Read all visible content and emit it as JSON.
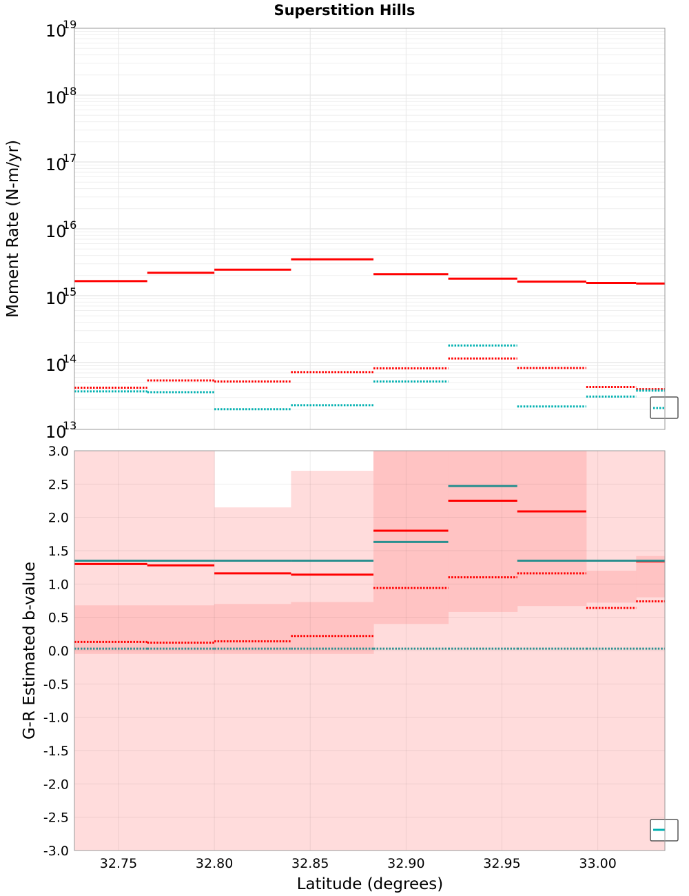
{
  "figure": {
    "title": "Superstition Hills",
    "xlabel": "Latitude (degrees)"
  },
  "chart_data": [
    {
      "type": "line",
      "title": "Superstition Hills",
      "ylabel": "Moment Rate (N-m/yr)",
      "xlabel": "Latitude (degrees)",
      "yscale": "log",
      "ylim": [
        10000000000000.0,
        1e+19
      ],
      "xlim": [
        32.727,
        33.035
      ],
      "grid": true,
      "x_ticks": [
        "32.75",
        "32.80",
        "32.85",
        "32.90",
        "32.95",
        "33.00"
      ],
      "y_ticks": [
        {
          "base": "10",
          "exp": "13",
          "value": 10000000000000.0
        },
        {
          "base": "10",
          "exp": "14",
          "value": 100000000000000.0
        },
        {
          "base": "10",
          "exp": "15",
          "value": 1000000000000000.0
        },
        {
          "base": "10",
          "exp": "16",
          "value": 1e+16
        },
        {
          "base": "10",
          "exp": "17",
          "value": 1e+17
        },
        {
          "base": "10",
          "exp": "18",
          "value": 1e+18
        },
        {
          "base": "10",
          "exp": "19",
          "value": 1e+19
        }
      ],
      "bins": [
        [
          32.727,
          32.765
        ],
        [
          32.765,
          32.8
        ],
        [
          32.8,
          32.84
        ],
        [
          32.84,
          32.883
        ],
        [
          32.883,
          32.922
        ],
        [
          32.922,
          32.958
        ],
        [
          32.958,
          32.994
        ],
        [
          32.994,
          33.02
        ],
        [
          33.02,
          33.035
        ]
      ],
      "series": [
        {
          "color": "#ff0000",
          "style": "solid",
          "values": [
            1650000000000000.0,
            2200000000000000.0,
            2450000000000000.0,
            3500000000000000.0,
            2100000000000000.0,
            1800000000000000.0,
            1620000000000000.0,
            1550000000000000.0,
            1520000000000000.0
          ]
        },
        {
          "color": "#ff0000",
          "style": "dotted",
          "values": [
            42000000000000.0,
            54000000000000.0,
            52000000000000.0,
            72000000000000.0,
            82000000000000.0,
            115000000000000.0,
            83000000000000.0,
            43000000000000.0,
            40000000000000.0
          ]
        },
        {
          "color": "#00b0b0",
          "style": "dotted",
          "values": [
            37000000000000.0,
            36000000000000.0,
            20000000000000.0,
            23000000000000.0,
            52000000000000.0,
            180000000000000.0,
            22000000000000.0,
            31000000000000.0,
            38000000000000.0
          ]
        }
      ]
    },
    {
      "type": "line",
      "ylabel": "G-R Estimated b-value",
      "xlabel": "Latitude (degrees)",
      "ylim": [
        -3.0,
        3.0
      ],
      "xlim": [
        32.727,
        33.035
      ],
      "grid": true,
      "x_ticks": [
        "32.75",
        "32.80",
        "32.85",
        "32.90",
        "32.95",
        "33.00"
      ],
      "y_ticks": [
        "3.0",
        "2.5",
        "2.0",
        "1.5",
        "1.0",
        "0.5",
        "0.0",
        "-0.5",
        "-1.0",
        "-1.5",
        "-2.0",
        "-2.5",
        "-3.0"
      ],
      "bins": [
        [
          32.727,
          32.765
        ],
        [
          32.765,
          32.8
        ],
        [
          32.8,
          32.84
        ],
        [
          32.84,
          32.883
        ],
        [
          32.883,
          32.922
        ],
        [
          32.922,
          32.958
        ],
        [
          32.958,
          32.994
        ],
        [
          32.994,
          33.02
        ],
        [
          33.02,
          33.035
        ]
      ],
      "bands": [
        {
          "color": "#ffdcdc",
          "lower": [
            -3,
            -3,
            -3,
            -3,
            -3,
            -3,
            -3,
            -3,
            -3
          ],
          "upper": [
            3,
            3,
            2.15,
            2.7,
            3,
            3,
            3,
            3,
            3
          ]
        },
        {
          "color": "#ffc3c3",
          "lower": [
            -0.05,
            -0.05,
            -0.05,
            -0.05,
            0.4,
            0.58,
            0.67,
            0.72,
            0.8
          ],
          "upper": [
            0.68,
            0.68,
            0.7,
            0.73,
            3,
            3,
            3,
            1.2,
            1.42
          ]
        }
      ],
      "series": [
        {
          "color": "#ff0000",
          "style": "solid",
          "values": [
            1.3,
            1.28,
            1.16,
            1.14,
            1.8,
            2.25,
            2.09,
            1.35,
            1.34
          ]
        },
        {
          "color": "#ff0000",
          "style": "dotted",
          "values": [
            0.13,
            0.12,
            0.14,
            0.22,
            0.94,
            1.1,
            1.16,
            0.64,
            0.74
          ]
        },
        {
          "color": "#2a8f8f",
          "style": "solid",
          "values": [
            1.35,
            1.35,
            1.35,
            1.35,
            1.63,
            2.47,
            1.35,
            1.35,
            1.35
          ]
        },
        {
          "color": "#2a8f8f",
          "style": "dotted",
          "values": [
            0.03,
            0.03,
            0.03,
            0.03,
            0.03,
            0.03,
            0.03,
            0.03,
            0.03
          ]
        }
      ]
    }
  ]
}
